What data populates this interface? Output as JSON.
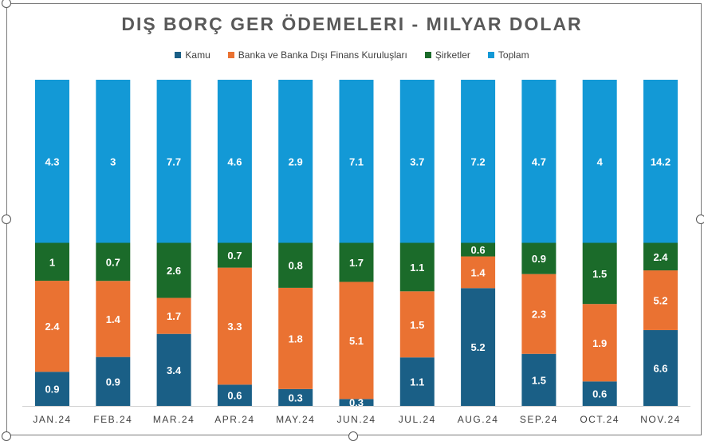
{
  "chart_data": {
    "type": "bar",
    "stacked": true,
    "title": "DIŞ BORÇ GER ÖDEMELERI - MILYAR DOLAR",
    "xlabel": "",
    "ylabel": "",
    "legend_position": "top",
    "grid": false,
    "categories": [
      "JAN.24",
      "FEB.24",
      "MAR.24",
      "APR.24",
      "MAY.24",
      "JUN.24",
      "JUL.24",
      "AUG.24",
      "SEP.24",
      "OCT.24",
      "NOV.24"
    ],
    "series": [
      {
        "name": "Kamu",
        "color": "#1a5f86",
        "values": [
          0.9,
          0.9,
          3.4,
          0.6,
          0.3,
          0.3,
          1.1,
          5.2,
          1.5,
          0.6,
          6.6
        ]
      },
      {
        "name": "Banka ve Banka Dışı Finans Kuruluşları",
        "color": "#ea7232",
        "values": [
          2.4,
          1.4,
          1.7,
          3.3,
          1.8,
          5.1,
          1.5,
          1.4,
          2.3,
          1.9,
          5.2
        ]
      },
      {
        "name": "Şirketler",
        "color": "#1b6b2a",
        "values": [
          1,
          0.7,
          2.6,
          0.7,
          0.8,
          1.7,
          1.1,
          0.6,
          0.9,
          1.5,
          2.4
        ]
      },
      {
        "name": "Toplam",
        "color": "#1399d6",
        "values": [
          4.3,
          3,
          7.7,
          4.6,
          2.9,
          7.1,
          3.7,
          7.2,
          4.7,
          4,
          14.2
        ]
      }
    ]
  }
}
